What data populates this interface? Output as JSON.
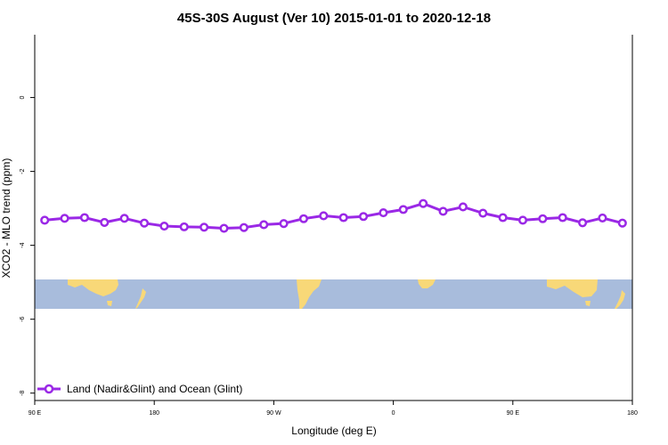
{
  "chart_data": {
    "type": "line",
    "title": "45S-30S August (Ver 10)   2015-01-01 to 2020-12-18",
    "xlabel": "Longitude (deg E)",
    "ylabel": "XCO2 - MLO trend (ppm)",
    "xlim": [
      90,
      450
    ],
    "ylim": [
      -8.2,
      1.7
    ],
    "x_ticks": [
      {
        "value": 90,
        "label": "90 E"
      },
      {
        "value": 162,
        "label": "180"
      },
      {
        "value": 234,
        "label": "90 W"
      },
      {
        "value": 306,
        "label": "0"
      },
      {
        "value": 378,
        "label": "90 E"
      },
      {
        "value": 450,
        "label": "180"
      }
    ],
    "y_ticks": [
      {
        "value": 0,
        "label": "0"
      },
      {
        "value": -2,
        "label": "-2"
      },
      {
        "value": -4,
        "label": "-4"
      },
      {
        "value": -6,
        "label": "-6"
      },
      {
        "value": -8,
        "label": "-8"
      }
    ],
    "series": [
      {
        "name": "Land (Nadir&Glint) and Ocean (Glint)",
        "color": "#9a28e6",
        "x": [
          96,
          108,
          120,
          132,
          144,
          156,
          168,
          180,
          192,
          204,
          216,
          228,
          240,
          252,
          264,
          276,
          288,
          300,
          312,
          324,
          336,
          348,
          360,
          372,
          384,
          396,
          408,
          420,
          432,
          444
        ],
        "y": [
          -3.32,
          -3.27,
          -3.25,
          -3.38,
          -3.27,
          -3.4,
          -3.48,
          -3.5,
          -3.51,
          -3.54,
          -3.52,
          -3.44,
          -3.41,
          -3.28,
          -3.2,
          -3.25,
          -3.22,
          -3.12,
          -3.03,
          -2.87,
          -3.08,
          -2.96,
          -3.13,
          -3.25,
          -3.32,
          -3.28,
          -3.25,
          -3.39,
          -3.26,
          -3.4
        ]
      }
    ],
    "map_strip": {
      "y_top": -5.0,
      "y_bottom": -5.8,
      "ocean_color": "#a8bcdc",
      "land_color": "#f8d878"
    },
    "legend_position": "bottom-left"
  }
}
